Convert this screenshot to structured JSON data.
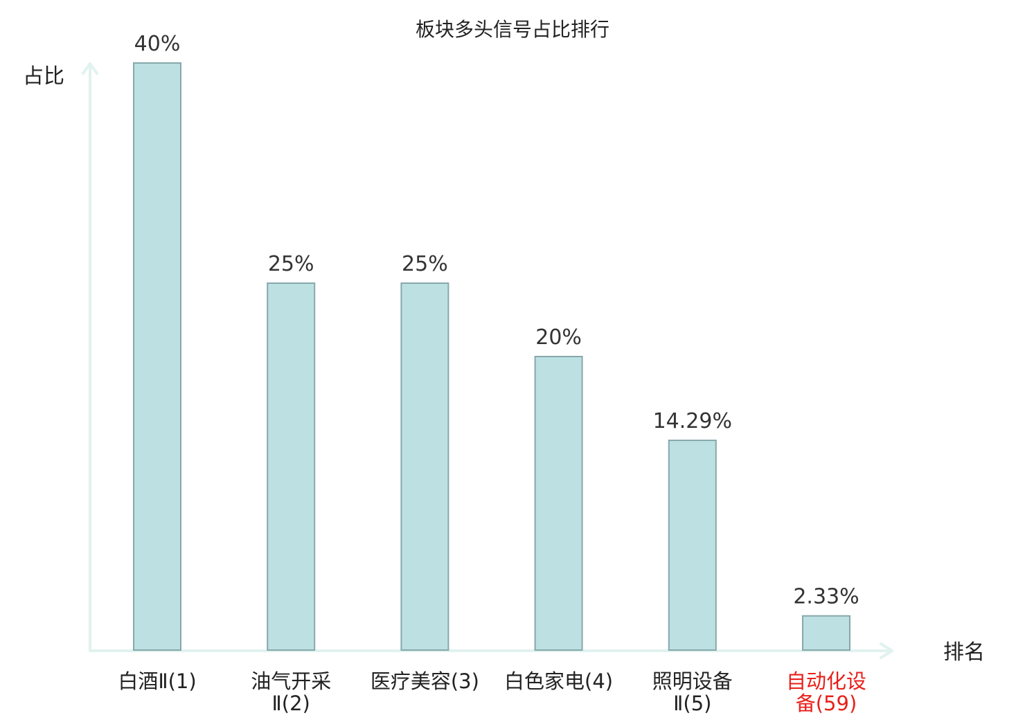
{
  "chart_data": {
    "type": "bar",
    "title": "板块多头信号占比排行",
    "ylabel": "占比",
    "xlabel": "排名",
    "ylim": [
      0,
      40
    ],
    "grid": false,
    "categories": [
      {
        "lines": [
          "白酒Ⅱ(1)"
        ],
        "highlight": false
      },
      {
        "lines": [
          "油气开采",
          "Ⅱ(2)"
        ],
        "highlight": false
      },
      {
        "lines": [
          "医疗美容(3)"
        ],
        "highlight": false
      },
      {
        "lines": [
          "白色家电(4)"
        ],
        "highlight": false
      },
      {
        "lines": [
          "照明设备",
          "Ⅱ(5)"
        ],
        "highlight": false
      },
      {
        "lines": [
          "自动化设",
          "备(59)"
        ],
        "highlight": true
      }
    ],
    "values": [
      40,
      25,
      25,
      20,
      14.29,
      2.33
    ],
    "value_labels": [
      "40%",
      "25%",
      "25%",
      "20%",
      "14.29%",
      "2.33%"
    ],
    "colors": {
      "bar": "#bde0e2",
      "bar_stroke": "#86a8aa",
      "axis": "#e1f2ef",
      "highlight": "#e8201a"
    }
  }
}
